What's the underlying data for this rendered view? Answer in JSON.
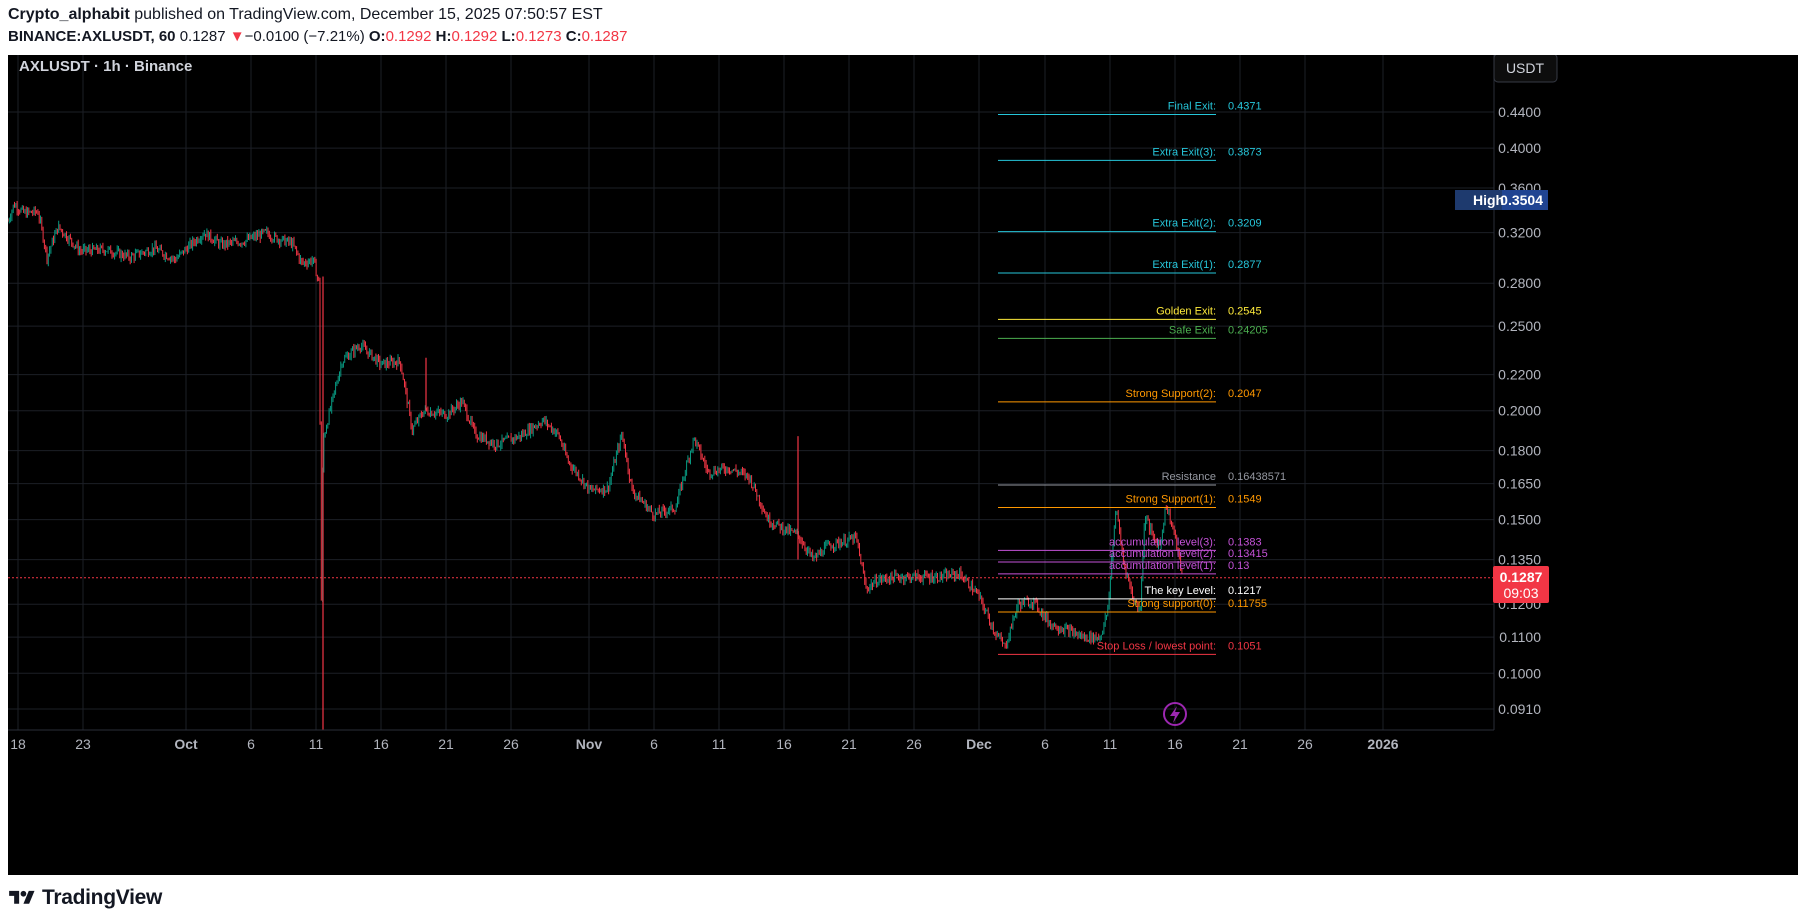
{
  "header": {
    "author": "Crypto_alphabit",
    "published_text": " published on TradingView.com, December 15, 2025 07:50:57 EST",
    "symbol_line": "BINANCE:AXLUSDT, 60",
    "last": "0.1287",
    "down_arrow": "▼",
    "change": "−0.0100 (−7.21%)",
    "o_label": "O:",
    "o": "0.1292",
    "h_label": "H:",
    "h": "0.1292",
    "l_label": "L:",
    "l": "0.1273",
    "c_label": "C:",
    "c": "0.1287"
  },
  "legend_title": "AXLUSDT · 1h · Binance",
  "currency_button": "USDT",
  "high_badge": {
    "label": "High",
    "value": "0.3504"
  },
  "price_badge": {
    "value": "0.1287",
    "countdown": "09:03"
  },
  "brand": "TradingView",
  "colors": {
    "background": "#000000",
    "up": "#089981",
    "down": "#f23645",
    "cyan": "#26c6da",
    "yellow": "#ffeb3b",
    "green": "#4caf50",
    "orange": "#ff9800",
    "purple": "#c552d8",
    "white": "#ffffff",
    "gray": "#9598a1",
    "pink": "#f23645"
  },
  "chart_data": {
    "type": "candlestick",
    "title": "AXLUSDT · 1h · Binance",
    "y_scale": "log",
    "ylim": [
      0.086,
      0.49
    ],
    "y_ticks": [
      "0.4400",
      "0.4000",
      "0.3600",
      "0.3200",
      "0.2800",
      "0.2500",
      "0.2200",
      "0.2000",
      "0.1800",
      "0.1650",
      "0.1500",
      "0.1350",
      "0.1200",
      "0.1100",
      "0.1000",
      "0.0910"
    ],
    "x_ticks": [
      "18",
      "23",
      "Oct",
      "6",
      "11",
      "16",
      "21",
      "26",
      "Nov",
      "6",
      "11",
      "16",
      "21",
      "26",
      "Dec",
      "6",
      "11",
      "16",
      "21",
      "26",
      "2026"
    ],
    "price_path": [
      [
        0,
        0.33
      ],
      [
        6,
        0.345
      ],
      [
        16,
        0.337
      ],
      [
        30,
        0.338
      ],
      [
        39,
        0.3
      ],
      [
        50,
        0.325
      ],
      [
        72,
        0.305
      ],
      [
        98,
        0.306
      ],
      [
        122,
        0.3
      ],
      [
        146,
        0.307
      ],
      [
        167,
        0.298
      ],
      [
        196,
        0.32
      ],
      [
        213,
        0.31
      ],
      [
        236,
        0.313
      ],
      [
        258,
        0.32
      ],
      [
        266,
        0.316
      ],
      [
        284,
        0.311
      ],
      [
        294,
        0.295
      ],
      [
        305,
        0.298
      ],
      [
        311,
        0.28
      ],
      [
        313,
        0.11
      ],
      [
        315,
        0.185
      ],
      [
        322,
        0.2
      ],
      [
        334,
        0.228
      ],
      [
        352,
        0.238
      ],
      [
        373,
        0.226
      ],
      [
        392,
        0.228
      ],
      [
        404,
        0.19
      ],
      [
        416,
        0.2
      ],
      [
        439,
        0.198
      ],
      [
        454,
        0.205
      ],
      [
        467,
        0.188
      ],
      [
        488,
        0.183
      ],
      [
        512,
        0.187
      ],
      [
        535,
        0.195
      ],
      [
        550,
        0.188
      ],
      [
        560,
        0.175
      ],
      [
        582,
        0.162
      ],
      [
        600,
        0.163
      ],
      [
        614,
        0.188
      ],
      [
        624,
        0.162
      ],
      [
        646,
        0.152
      ],
      [
        668,
        0.155
      ],
      [
        686,
        0.186
      ],
      [
        700,
        0.17
      ],
      [
        720,
        0.172
      ],
      [
        741,
        0.168
      ],
      [
        760,
        0.15
      ],
      [
        778,
        0.146
      ],
      [
        790,
        0.144
      ],
      [
        805,
        0.135
      ],
      [
        820,
        0.14
      ],
      [
        848,
        0.143
      ],
      [
        858,
        0.125
      ],
      [
        870,
        0.128
      ],
      [
        889,
        0.129
      ],
      [
        910,
        0.129
      ],
      [
        932,
        0.129
      ],
      [
        952,
        0.13
      ],
      [
        970,
        0.123
      ],
      [
        986,
        0.112
      ],
      [
        997,
        0.107
      ],
      [
        1010,
        0.12
      ],
      [
        1025,
        0.121
      ],
      [
        1042,
        0.114
      ],
      [
        1060,
        0.112
      ],
      [
        1075,
        0.11
      ],
      [
        1092,
        0.11
      ],
      [
        1100,
        0.118
      ],
      [
        1108,
        0.155
      ],
      [
        1115,
        0.135
      ],
      [
        1125,
        0.122
      ],
      [
        1132,
        0.118
      ],
      [
        1137,
        0.152
      ],
      [
        1145,
        0.143
      ],
      [
        1152,
        0.14
      ],
      [
        1158,
        0.156
      ],
      [
        1166,
        0.145
      ],
      [
        1175,
        0.128
      ]
    ],
    "spikes": [
      {
        "x": 315,
        "high": 0.285,
        "low": 0.086
      },
      {
        "x": 790,
        "high": 0.187,
        "low": 0.135
      },
      {
        "x": 418,
        "high": 0.23,
        "low": 0.2
      }
    ],
    "levels": [
      {
        "label": "Final Exit:",
        "value": "0.4371",
        "price": 0.4371,
        "color": "#26c6da"
      },
      {
        "label": "Extra Exit(3):",
        "value": "0.3873",
        "price": 0.3873,
        "color": "#26c6da"
      },
      {
        "label": "Extra Exit(2):",
        "value": "0.3209",
        "price": 0.3209,
        "color": "#26c6da"
      },
      {
        "label": "Extra Exit(1):",
        "value": "0.2877",
        "price": 0.2877,
        "color": "#26c6da"
      },
      {
        "label": "Golden Exit:",
        "value": "0.2545",
        "price": 0.2545,
        "color": "#ffeb3b"
      },
      {
        "label": "Safe Exit:",
        "value": "0.24205",
        "price": 0.24205,
        "color": "#4caf50"
      },
      {
        "label": "Strong Support(2):",
        "value": "0.2047",
        "price": 0.2047,
        "color": "#ff9800"
      },
      {
        "label": "Resistance",
        "value": "0.16438571",
        "price": 0.16438571,
        "color": "#9598a1"
      },
      {
        "label": "Strong Support(1):",
        "value": "0.1549",
        "price": 0.1549,
        "color": "#ff9800"
      },
      {
        "label": "accumulation level(3):",
        "value": "0.1383",
        "price": 0.1383,
        "color": "#c552d8"
      },
      {
        "label": "accumulation level(2):",
        "value": "0.13415",
        "price": 0.13415,
        "color": "#c552d8"
      },
      {
        "label": "accumulation level(1):",
        "value": "0.13",
        "price": 0.13,
        "color": "#c552d8"
      },
      {
        "label": "The key Level:",
        "value": "0.1217",
        "price": 0.1217,
        "color": "#ffffff"
      },
      {
        "label": "Strong support(0):",
        "value": "0.11755",
        "price": 0.11755,
        "color": "#ff9800"
      },
      {
        "label": "Stop Loss / lowest point:",
        "value": "0.1051",
        "price": 0.1051,
        "color": "#f23645"
      }
    ],
    "current_price": 0.1287,
    "high": 0.3504
  }
}
